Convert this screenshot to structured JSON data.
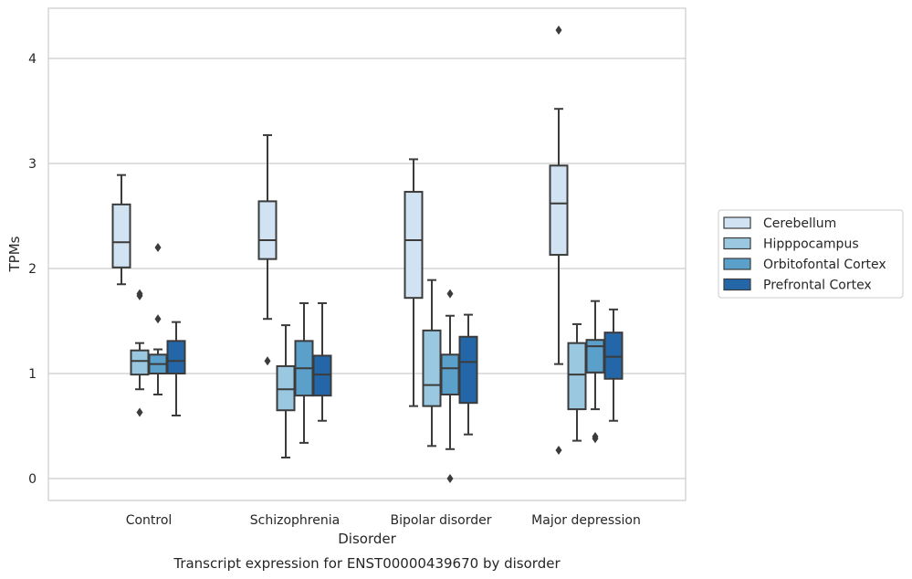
{
  "chart_data": {
    "type": "box",
    "xlabel": "Disorder",
    "ylabel": "TPMs",
    "caption": "Transcript expression for ENST00000439670 by disorder",
    "ylim": [
      -0.2,
      4.47
    ],
    "yticks": [
      0,
      1,
      2,
      3,
      4
    ],
    "grid": "horizontal",
    "legend_position": "right",
    "categories": [
      "Control",
      "Schizophrenia",
      "Bipolar disorder",
      "Major depression"
    ],
    "series": [
      {
        "name": "Cerebellum",
        "color": "#d1e2f2",
        "boxes": [
          {
            "whislo": 1.85,
            "q1": 2.01,
            "med": 2.25,
            "q3": 2.61,
            "whishi": 2.89,
            "fliers": []
          },
          {
            "whislo": 1.52,
            "q1": 2.09,
            "med": 2.27,
            "q3": 2.64,
            "whishi": 3.27,
            "fliers": [
              1.12
            ]
          },
          {
            "whislo": 0.69,
            "q1": 1.72,
            "med": 2.27,
            "q3": 2.73,
            "whishi": 3.04,
            "fliers": []
          },
          {
            "whislo": 1.09,
            "q1": 2.13,
            "med": 2.62,
            "q3": 2.98,
            "whishi": 3.52,
            "fliers": [
              0.27,
              4.27
            ]
          }
        ]
      },
      {
        "name": "Hipppocampus",
        "color": "#9ac8e0",
        "boxes": [
          {
            "whislo": 0.85,
            "q1": 0.99,
            "med": 1.12,
            "q3": 1.22,
            "whishi": 1.29,
            "fliers": [
              0.63,
              1.74,
              1.76
            ]
          },
          {
            "whislo": 0.2,
            "q1": 0.65,
            "med": 0.85,
            "q3": 1.07,
            "whishi": 1.46,
            "fliers": []
          },
          {
            "whislo": 0.31,
            "q1": 0.69,
            "med": 0.89,
            "q3": 1.41,
            "whishi": 1.89,
            "fliers": []
          },
          {
            "whislo": 0.36,
            "q1": 0.66,
            "med": 0.99,
            "q3": 1.29,
            "whishi": 1.47,
            "fliers": []
          }
        ]
      },
      {
        "name": "Orbitofontal Cortex",
        "color": "#5b9fcb",
        "boxes": [
          {
            "whislo": 0.8,
            "q1": 1.0,
            "med": 1.09,
            "q3": 1.18,
            "whishi": 1.23,
            "fliers": [
              1.52,
              2.2
            ]
          },
          {
            "whislo": 0.34,
            "q1": 0.79,
            "med": 1.05,
            "q3": 1.31,
            "whishi": 1.67,
            "fliers": []
          },
          {
            "whislo": 0.28,
            "q1": 0.8,
            "med": 1.05,
            "q3": 1.18,
            "whishi": 1.55,
            "fliers": [
              0.0,
              1.76
            ]
          },
          {
            "whislo": 0.66,
            "q1": 1.01,
            "med": 1.26,
            "q3": 1.32,
            "whishi": 1.69,
            "fliers": [
              0.38,
              0.4
            ]
          }
        ]
      },
      {
        "name": "Prefrontal Cortex",
        "color": "#2467a9",
        "boxes": [
          {
            "whislo": 0.6,
            "q1": 1.0,
            "med": 1.12,
            "q3": 1.31,
            "whishi": 1.49,
            "fliers": []
          },
          {
            "whislo": 0.55,
            "q1": 0.79,
            "med": 0.99,
            "q3": 1.17,
            "whishi": 1.67,
            "fliers": []
          },
          {
            "whislo": 0.42,
            "q1": 0.72,
            "med": 1.11,
            "q3": 1.35,
            "whishi": 1.56,
            "fliers": []
          },
          {
            "whislo": 0.55,
            "q1": 0.95,
            "med": 1.16,
            "q3": 1.39,
            "whishi": 1.61,
            "fliers": []
          }
        ]
      }
    ]
  }
}
